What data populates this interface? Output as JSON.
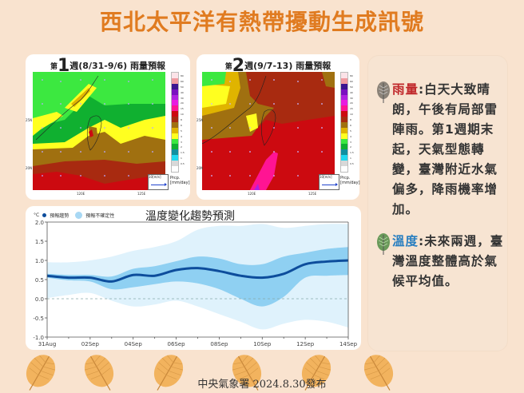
{
  "title": "西北太平洋有熱帶擾動生成訊號",
  "maps": [
    {
      "prefix": "第",
      "week_num": "1",
      "suffix": "週(8/31-9/6) 雨量預報",
      "y_ticks": [
        "25N",
        "20N"
      ],
      "x_ticks": [
        "120E",
        "125E"
      ],
      "vector_key": "10[m/s]",
      "prcp_label": "Prcp.",
      "prcp_unit": "[mm/day]"
    },
    {
      "prefix": "第",
      "week_num": "2",
      "suffix": "週(9/7-13) 雨量預報",
      "y_ticks": [
        "25N",
        "20N"
      ],
      "x_ticks": [
        "120E",
        "125E"
      ],
      "vector_key": "10[m/s]",
      "prcp_label": "Prcp.",
      "prcp_unit": "[mm/day]"
    }
  ],
  "colorbar": {
    "colors": [
      "#fbe3e8",
      "#f09aa0",
      "#3c1490",
      "#7a10c0",
      "#b020e0",
      "#e81ce0",
      "#ff1493",
      "#cc0a10",
      "#a82a10",
      "#a07010",
      "#e0b400",
      "#ffff20",
      "#3ce840",
      "#10b030",
      "#1090a0",
      "#20d8f0",
      "#d8d8d8",
      "#ffffff"
    ],
    "labels": [
      "80",
      "60",
      "50",
      "40",
      "30",
      "20",
      "15",
      "10",
      "8",
      "6",
      "5",
      "4",
      "3",
      "2",
      "1.5",
      "1",
      "0.5",
      ""
    ]
  },
  "chart": {
    "title": "溫度變化趨勢預測",
    "unit": "°C",
    "legend": [
      {
        "label": "預報趨勢",
        "color": "#0d4d9c"
      },
      {
        "label": "預報不確定性",
        "color": "#a8d8f4"
      }
    ]
  },
  "chart_data": {
    "type": "line",
    "title": "溫度變化趨勢預測",
    "xlabel": "",
    "ylabel": "°C",
    "ylim": [
      -1.0,
      2.0
    ],
    "y_ticks": [
      "2.0",
      "1.5",
      "1.0",
      "0.5",
      "0.0",
      "-0.5",
      "-1.0"
    ],
    "x_tick_labels": [
      "31Aug",
      "02Sep",
      "04Sep",
      "06Sep",
      "08Sep",
      "10Sep",
      "12Sep",
      "14Sep"
    ],
    "x": [
      "08/31",
      "09/01",
      "09/02",
      "09/03",
      "09/04",
      "09/05",
      "09/06",
      "09/07",
      "09/08",
      "09/09",
      "09/10",
      "09/11",
      "09/12",
      "09/13",
      "09/14"
    ],
    "series": [
      {
        "name": "預報趨勢",
        "values": [
          0.6,
          0.55,
          0.55,
          0.45,
          0.62,
          0.6,
          0.75,
          0.8,
          0.72,
          0.6,
          0.55,
          0.65,
          0.9,
          0.97,
          1.0
        ]
      },
      {
        "name": "預報不確定性 (inner upper)",
        "values": [
          0.65,
          0.62,
          0.62,
          0.58,
          0.78,
          0.85,
          0.98,
          1.1,
          1.05,
          0.9,
          0.9,
          1.1,
          1.2,
          1.3,
          1.35
        ]
      },
      {
        "name": "預報不確定性 (inner lower)",
        "values": [
          0.55,
          0.48,
          0.45,
          0.25,
          0.3,
          0.38,
          0.45,
          0.4,
          0.25,
          0.0,
          -0.2,
          0.05,
          0.55,
          0.6,
          0.62
        ]
      },
      {
        "name": "預報不確定性 (outer upper)",
        "values": [
          0.95,
          0.95,
          1.0,
          1.1,
          1.25,
          1.35,
          1.5,
          1.8,
          1.9,
          1.9,
          1.95,
          1.85,
          1.9,
          1.95,
          1.95
        ]
      },
      {
        "name": "預報不確定性 (outer lower)",
        "values": [
          0.02,
          0.1,
          0.15,
          -0.05,
          -0.2,
          -0.15,
          -0.05,
          -0.2,
          -0.4,
          -0.6,
          -0.8,
          -0.65,
          -0.55,
          -0.6,
          -0.75
        ]
      }
    ],
    "zero_line": "dashed",
    "grid": false
  },
  "side_panel": {
    "items": [
      {
        "label": "雨量",
        "text": ":白天大致晴朗，午後有局部雷陣雨。第1週期末起，天氣型態轉變，臺灣附近水氣偏多，降雨機率增加。"
      },
      {
        "label": "溫度",
        "text": ":未來兩週，臺灣溫度整體高於氣候平均值。"
      }
    ]
  },
  "footer": "中央氣象署 2024.8.30發布"
}
